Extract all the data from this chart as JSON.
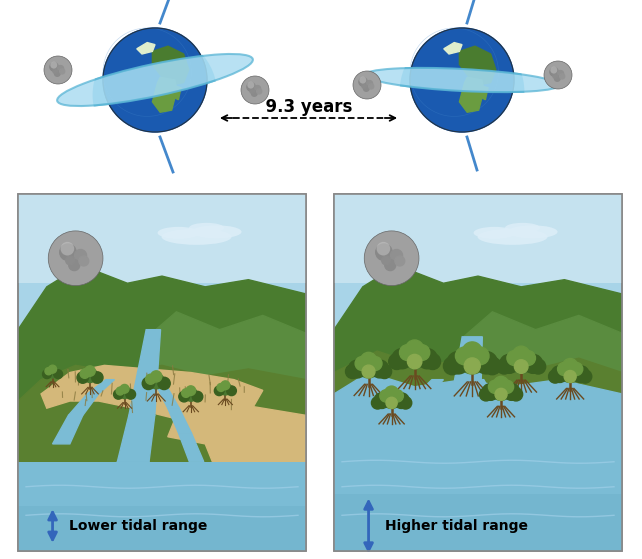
{
  "bg_color": "#ffffff",
  "sky_color": "#a8d4e8",
  "sky_color2": "#c5e2ef",
  "hill_color": "#4a7c2f",
  "hill_color2": "#5a8c3f",
  "water_color": "#7bbcd5",
  "water_color2": "#8ecde6",
  "water_deep": "#6aaec8",
  "water_fg": "#7bbcd5",
  "sand_color": "#d4b87a",
  "sand_color2": "#c9a96a",
  "mud_color": "#b89a55",
  "tree_dark": "#3a6020",
  "tree_med": "#4a7830",
  "tree_light": "#6a9840",
  "tree_yellow": "#8aaa50",
  "trunk_color": "#6a4a20",
  "arrow_color": "#3355aa",
  "label_lower": "Lower tidal range",
  "label_higher": "Higher tidal range",
  "years_label": "  9.3 years  ",
  "orbit_color": "#a0d8ef",
  "orbit_edge": "#5ab5d5",
  "earth_ocean": "#1a5ab0",
  "earth_land": "#4a7c2f",
  "earth_land2": "#6a9c40",
  "earth_snow": "#e0eecc",
  "moon_base": "#a0a0a0",
  "moon_dark": "#808080",
  "moon_light": "#c8c8c8",
  "tilt_line": "#4488cc",
  "wave_color": "#9fcfe8",
  "cloud_color": "#ddeef8",
  "panel_border": "#888888",
  "label_color": "#000000",
  "arrow_blue": "#3366bb"
}
